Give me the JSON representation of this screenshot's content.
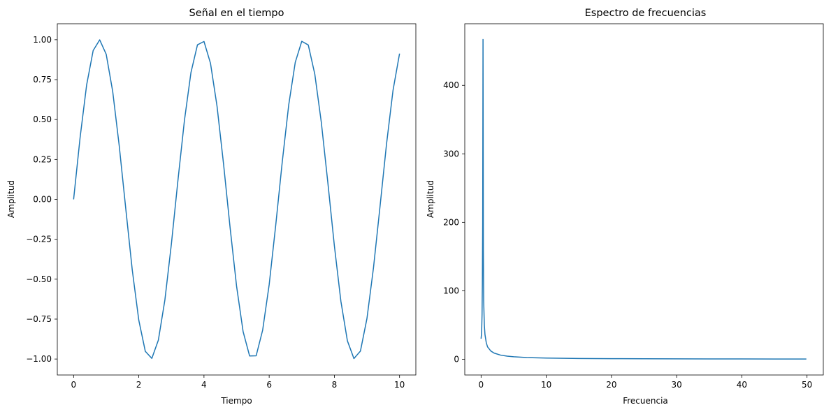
{
  "chart_data": [
    {
      "type": "line",
      "title": "Señal en el tiempo",
      "xlabel": "Tiempo",
      "ylabel": "Amplitud",
      "xlim": [
        -0.5,
        10.5
      ],
      "ylim": [
        -1.1,
        1.1
      ],
      "xticks": [
        0,
        2,
        4,
        6,
        8,
        10
      ],
      "xtick_labels": [
        "0",
        "2",
        "4",
        "6",
        "8",
        "10"
      ],
      "yticks": [
        1.0,
        0.75,
        0.5,
        0.25,
        0.0,
        -0.25,
        -0.5,
        -0.75,
        -1.0
      ],
      "ytick_labels": [
        "1.00",
        "0.75",
        "0.50",
        "0.25",
        "0.00",
        "−0.25",
        "−0.50",
        "−0.75",
        "−1.00"
      ],
      "grid": false,
      "legend": "none",
      "series": [
        {
          "color": "#1f77b4",
          "x": [
            0,
            0.2,
            0.4,
            0.6,
            0.8,
            1.0,
            1.2,
            1.4,
            1.6,
            1.8,
            2.0,
            2.2,
            2.4,
            2.6,
            2.8,
            3.0,
            3.2,
            3.4,
            3.6,
            3.8,
            4.0,
            4.2,
            4.4,
            4.6,
            4.8,
            5.0,
            5.2,
            5.4,
            5.6,
            5.8,
            6.0,
            6.2,
            6.4,
            6.6,
            6.8,
            7.0,
            7.2,
            7.4,
            7.6,
            7.8,
            8.0,
            8.2,
            8.4,
            8.6,
            8.8,
            9.0,
            9.2,
            9.4,
            9.6,
            9.8,
            10.0
          ],
          "y": [
            0.0,
            0.389,
            0.717,
            0.932,
            0.999,
            0.909,
            0.675,
            0.335,
            -0.058,
            -0.443,
            -0.757,
            -0.952,
            -0.996,
            -0.882,
            -0.631,
            -0.279,
            0.117,
            0.494,
            0.794,
            0.968,
            0.989,
            0.852,
            0.584,
            0.222,
            -0.175,
            -0.544,
            -0.828,
            -0.981,
            -0.98,
            -0.819,
            -0.534,
            -0.164,
            0.232,
            0.592,
            0.858,
            0.99,
            0.967,
            0.784,
            0.482,
            0.105,
            -0.29,
            -0.638,
            -0.886,
            -0.997,
            -0.95,
            -0.746,
            -0.429,
            -0.046,
            0.346,
            0.683,
            0.913
          ]
        }
      ]
    },
    {
      "type": "line",
      "title": "Espectro de frecuencias",
      "xlabel": "Frecuencia",
      "ylabel": "Amplitud",
      "xlim": [
        -2.5,
        52.5
      ],
      "ylim": [
        -23,
        490
      ],
      "xticks": [
        0,
        10,
        20,
        30,
        40,
        50
      ],
      "xtick_labels": [
        "0",
        "10",
        "20",
        "30",
        "40",
        "50"
      ],
      "yticks": [
        400,
        300,
        200,
        100,
        0
      ],
      "ytick_labels": [
        "400",
        "300",
        "200",
        "100",
        "0"
      ],
      "grid": false,
      "legend": "none",
      "series": [
        {
          "color": "#1f77b4",
          "x": [
            0.0,
            0.05,
            0.1,
            0.15,
            0.2,
            0.25,
            0.3,
            0.35,
            0.4,
            0.5,
            0.6,
            0.8,
            1.0,
            1.5,
            2.0,
            3.0,
            4.0,
            5.0,
            7.0,
            10.0,
            15.0,
            20.0,
            25.0,
            30.0,
            35.0,
            40.0,
            45.0,
            49.9
          ],
          "y": [
            30,
            35,
            45,
            65,
            110,
            200,
            467,
            160,
            85,
            50,
            36,
            24,
            18,
            12,
            9,
            6,
            4.5,
            3.6,
            2.5,
            1.7,
            1.1,
            0.85,
            0.65,
            0.55,
            0.45,
            0.4,
            0.35,
            0.3
          ]
        }
      ]
    }
  ]
}
